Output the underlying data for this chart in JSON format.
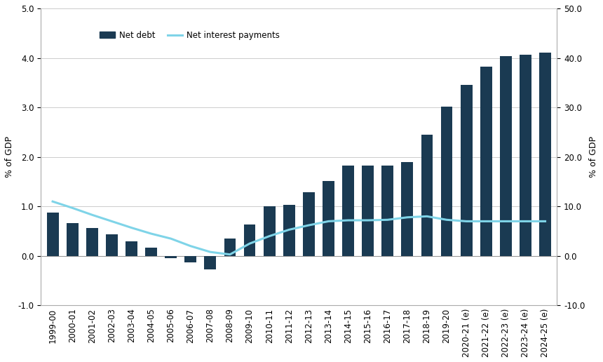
{
  "categories": [
    "1999-00",
    "2000-01",
    "2001-02",
    "2002-03",
    "2003-04",
    "2004-05",
    "2005-06",
    "2006-07",
    "2007-08",
    "2008-09",
    "2009-10",
    "2010-11",
    "2011-12",
    "2012-13",
    "2013-14",
    "2014-15",
    "2015-16",
    "2016-17",
    "2017-18",
    "2018-19",
    "2019-20",
    "2020-21 (e)",
    "2021-22 (e)",
    "2022-23 (e)",
    "2023-24 (e)",
    "2024-25 (e)"
  ],
  "net_debt": [
    0.87,
    0.67,
    0.57,
    0.43,
    0.3,
    0.17,
    -0.05,
    -0.13,
    -0.27,
    0.35,
    0.63,
    1.0,
    1.03,
    1.28,
    1.52,
    1.82,
    1.83,
    1.83,
    1.9,
    2.45,
    3.01,
    3.45,
    3.83,
    4.03,
    4.07,
    4.1
  ],
  "net_interest": [
    1.1,
    0.97,
    0.83,
    0.7,
    0.57,
    0.45,
    0.35,
    0.2,
    0.08,
    0.03,
    0.25,
    0.4,
    0.53,
    0.62,
    0.7,
    0.72,
    0.72,
    0.73,
    0.78,
    0.8,
    0.73,
    0.7,
    0.7,
    0.7,
    0.7,
    0.7
  ],
  "bar_color": "#1a3a52",
  "line_color": "#7fd4e8",
  "ylabel_left": "% of GDP",
  "ylabel_right": "% of GDP",
  "ylim_left": [
    -1.0,
    5.0
  ],
  "ylim_right": [
    -10.0,
    50.0
  ],
  "yticks_left": [
    -1.0,
    0.0,
    1.0,
    2.0,
    3.0,
    4.0,
    5.0
  ],
  "yticks_right": [
    -10.0,
    0.0,
    10.0,
    20.0,
    30.0,
    40.0,
    50.0
  ],
  "legend_net_debt": "Net debt",
  "legend_net_interest": "Net interest payments",
  "background_color": "#ffffff",
  "grid_color": "#cccccc",
  "label_fontsize": 9,
  "tick_fontsize": 8.5
}
